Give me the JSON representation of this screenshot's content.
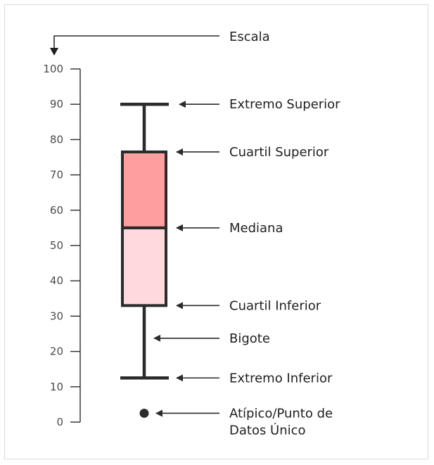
{
  "colors": {
    "stroke": "#2b2b2b",
    "upper_box": "#ff9e9e",
    "lower_box": "#ffd9db",
    "text": "#1f1f1f",
    "tick_text": "#4a4a4a"
  },
  "scale": {
    "label": "Escala",
    "ticks": [
      "0",
      "10",
      "20",
      "30",
      "40",
      "50",
      "60",
      "70",
      "80",
      "90",
      "100"
    ]
  },
  "boxplot": {
    "whisker_top": 90,
    "q3": 76.5,
    "median": 55,
    "q1": 33,
    "whisker_bottom": 12.5,
    "outlier": 2.5
  },
  "annotations": {
    "upper_extreme": "Extremo Superior",
    "upper_quartile": "Cuartil Superior",
    "median": "Mediana",
    "lower_quartile": "Cuartil Inferior",
    "whisker": "Bigote",
    "lower_extreme": "Extremo Inferior",
    "outlier_line1": "Atípico/Punto de",
    "outlier_line2": "Datos Único"
  }
}
